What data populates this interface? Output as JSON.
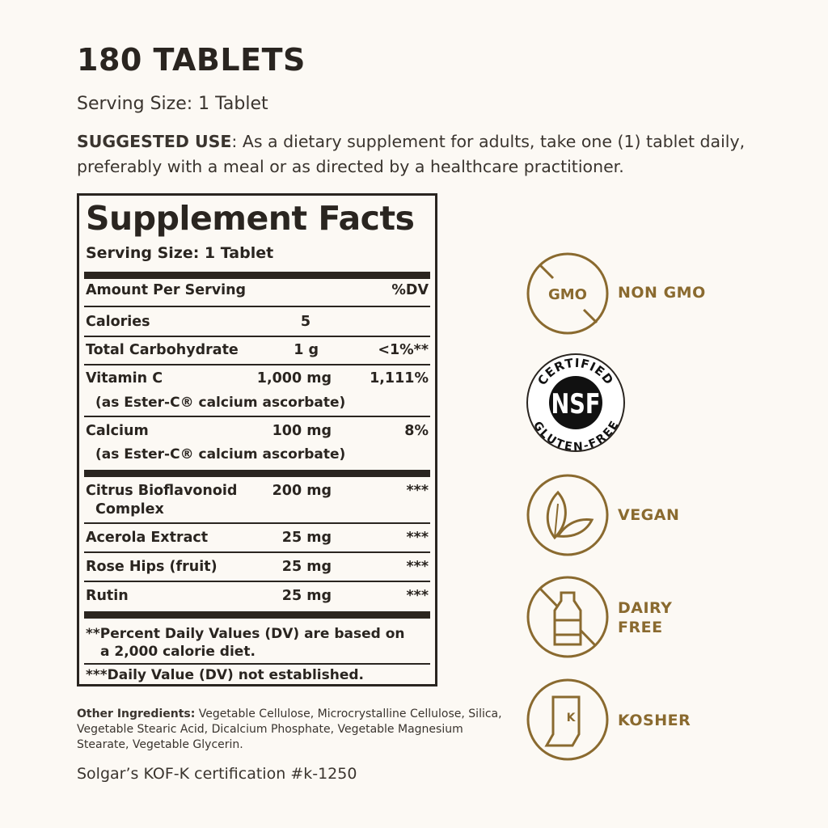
{
  "header": {
    "count": "180 TABLETS",
    "serving_size": "Serving Size: 1 Tablet",
    "suggested_use_label": "SUGGESTED USE",
    "suggested_use_text": ": As a dietary supplement for adults, take one (1) tablet daily, preferably with a meal or as directed by a healthcare practitioner."
  },
  "facts": {
    "title": "Supplement Facts",
    "serving_size": "Serving Size: 1 Tablet",
    "header_amount": "Amount Per Serving",
    "header_dv": "%DV",
    "rows": [
      {
        "name": "Calories",
        "amount": "5",
        "dv": ""
      },
      {
        "name": "Total Carbohydrate",
        "amount": "1 g",
        "dv": "<1%**"
      },
      {
        "name": "Vitamin C",
        "amount": "1,000 mg",
        "dv": "1,111%",
        "sub": "(as Ester-C® calcium ascorbate)"
      },
      {
        "name": "Calcium",
        "amount": "100 mg",
        "dv": "8%",
        "sub": "(as Ester-C® calcium ascorbate)"
      },
      {
        "name": "Citrus Bioflavonoid",
        "amount": "200 mg",
        "dv": "***",
        "sub": "Complex"
      },
      {
        "name": "Acerola Extract",
        "amount": "25 mg",
        "dv": "***"
      },
      {
        "name": "Rose Hips (fruit)",
        "amount": "25 mg",
        "dv": "***"
      },
      {
        "name": "Rutin",
        "amount": "25 mg",
        "dv": "***"
      }
    ],
    "footnote1": "**Percent Daily Values (DV) are based on",
    "footnote1b": "a 2,000 calorie diet.",
    "footnote2": "***Daily Value (DV) not established."
  },
  "other": {
    "label": "Other Ingredients:",
    "text": " Vegetable Cellulose, Microcrystalline Cellulose, Silica, Vegetable Stearic Acid, Dicalcium Phosphate, Vegetable Magnesium Stearate, Vegetable Glycerin."
  },
  "certification": "Solgar’s KOF-K certification #k-1250",
  "badges": {
    "gmo_icon_text": "GMO",
    "non_gmo": "NON GMO",
    "nsf_top": "CERTIFIED",
    "nsf_center": "NSF",
    "nsf_bottom": "GLUTEN-FREE",
    "vegan": "VEGAN",
    "dairy1": "DAIRY",
    "dairy2": "FREE",
    "kosher_icon_text": "K",
    "kosher": "KOSHER"
  },
  "colors": {
    "gold": "#8a6a2f",
    "text": "#2a2520",
    "background": "#fcf9f4"
  }
}
